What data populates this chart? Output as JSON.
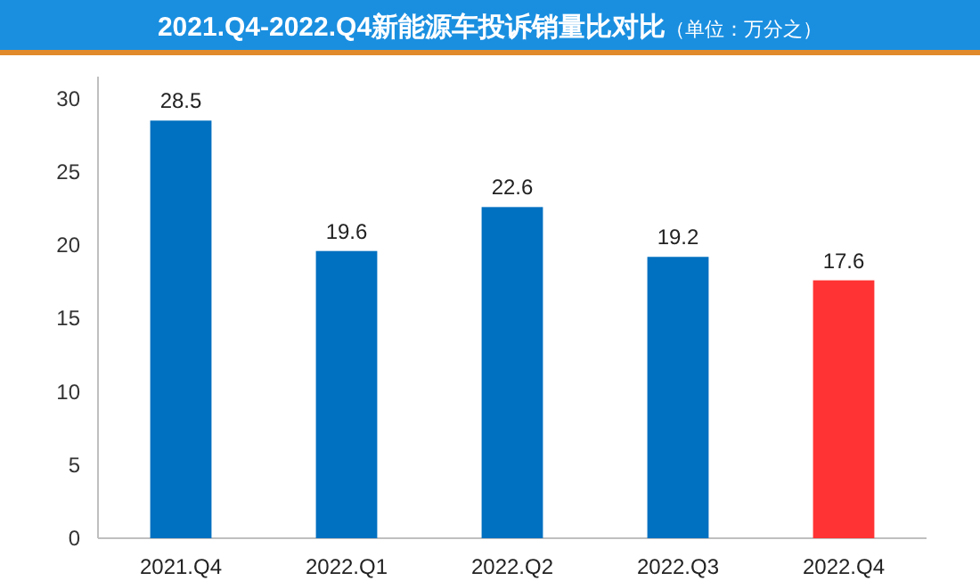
{
  "chart_data": {
    "type": "bar",
    "title": "2021.Q4-2022.Q4新能源车投诉销量比对比",
    "subtitle": "（单位：万分之）",
    "categories": [
      "2021.Q4",
      "2022.Q1",
      "2022.Q2",
      "2022.Q3",
      "2022.Q4"
    ],
    "values": [
      28.5,
      19.6,
      22.6,
      19.2,
      17.6
    ],
    "colors": [
      "#0070c0",
      "#0070c0",
      "#0070c0",
      "#0070c0",
      "#ff3333"
    ],
    "ylim": [
      0,
      31.5
    ],
    "yticks": [
      0,
      5,
      10,
      15,
      20,
      25,
      30
    ],
    "data_labels": true,
    "grid": false
  }
}
